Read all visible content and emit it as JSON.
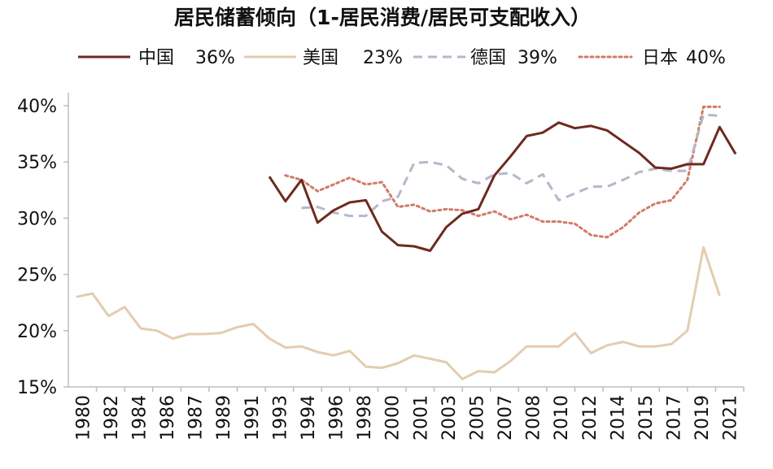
{
  "chart_data": {
    "type": "line",
    "title": "居民储蓄倾向（1-居民消费/居民可支配收入）",
    "xlabel": "",
    "ylabel": "",
    "ylim": [
      15,
      40
    ],
    "yticks": [
      "15%",
      "20%",
      "25%",
      "30%",
      "35%",
      "40%"
    ],
    "xtick_labels": [
      "1980",
      "1982",
      "1984",
      "1986",
      "1987",
      "1989",
      "1991",
      "1993",
      "1994",
      "1996",
      "1998",
      "2000",
      "2001",
      "2003",
      "2005",
      "2007",
      "2008",
      "2010",
      "2012",
      "2014",
      "2015",
      "2017",
      "2019",
      "2021"
    ],
    "grid": false,
    "legend_position": "top",
    "series": [
      {
        "name": "中国",
        "legend_value": "36%",
        "color": "#6e2a1f",
        "style": "solid",
        "points": [
          [
            1992,
            33.7
          ],
          [
            1993,
            31.5
          ],
          [
            1994,
            33.4
          ],
          [
            1995,
            29.6
          ],
          [
            1996,
            30.7
          ],
          [
            1997,
            31.4
          ],
          [
            1998,
            31.6
          ],
          [
            1999,
            28.8
          ],
          [
            2000,
            27.6
          ],
          [
            2001,
            27.5
          ],
          [
            2002,
            27.1
          ],
          [
            2003,
            29.2
          ],
          [
            2004,
            30.4
          ],
          [
            2005,
            30.8
          ],
          [
            2006,
            33.8
          ],
          [
            2007,
            35.5
          ],
          [
            2008,
            37.3
          ],
          [
            2009,
            37.6
          ],
          [
            2010,
            38.5
          ],
          [
            2011,
            38.0
          ],
          [
            2012,
            38.2
          ],
          [
            2013,
            37.8
          ],
          [
            2014,
            36.8
          ],
          [
            2015,
            35.8
          ],
          [
            2016,
            34.5
          ],
          [
            2017,
            34.4
          ],
          [
            2018,
            34.8
          ],
          [
            2019,
            34.8
          ],
          [
            2020,
            38.1
          ],
          [
            2021,
            35.7
          ]
        ]
      },
      {
        "name": "美国",
        "legend_value": "23%",
        "color": "#e2cdb1",
        "style": "solid",
        "points": [
          [
            1980,
            23.0
          ],
          [
            1981,
            23.3
          ],
          [
            1982,
            21.3
          ],
          [
            1983,
            22.1
          ],
          [
            1984,
            20.2
          ],
          [
            1985,
            20.0
          ],
          [
            1986,
            19.3
          ],
          [
            1987,
            19.7
          ],
          [
            1988,
            19.7
          ],
          [
            1989,
            19.8
          ],
          [
            1990,
            20.3
          ],
          [
            1991,
            20.6
          ],
          [
            1992,
            19.3
          ],
          [
            1993,
            18.5
          ],
          [
            1994,
            18.6
          ],
          [
            1995,
            18.1
          ],
          [
            1996,
            17.8
          ],
          [
            1997,
            18.2
          ],
          [
            1998,
            16.8
          ],
          [
            1999,
            16.7
          ],
          [
            2000,
            17.1
          ],
          [
            2001,
            17.8
          ],
          [
            2002,
            17.5
          ],
          [
            2003,
            17.2
          ],
          [
            2004,
            15.7
          ],
          [
            2005,
            16.4
          ],
          [
            2006,
            16.3
          ],
          [
            2007,
            17.3
          ],
          [
            2008,
            18.6
          ],
          [
            2009,
            18.6
          ],
          [
            2010,
            18.6
          ],
          [
            2011,
            19.8
          ],
          [
            2012,
            18.0
          ],
          [
            2013,
            18.7
          ],
          [
            2014,
            19.0
          ],
          [
            2015,
            18.6
          ],
          [
            2016,
            18.6
          ],
          [
            2017,
            18.8
          ],
          [
            2018,
            20.0
          ],
          [
            2019,
            27.4
          ],
          [
            2020,
            23.1
          ]
        ]
      },
      {
        "name": "德国",
        "legend_value": "39%",
        "color": "#b5b8c9",
        "style": "dashed",
        "points": [
          [
            1994,
            30.9
          ],
          [
            1995,
            31.0
          ],
          [
            1996,
            30.5
          ],
          [
            1997,
            30.2
          ],
          [
            1998,
            30.2
          ],
          [
            1999,
            31.5
          ],
          [
            2000,
            31.9
          ],
          [
            2001,
            34.9
          ],
          [
            2002,
            35.0
          ],
          [
            2003,
            34.7
          ],
          [
            2004,
            33.5
          ],
          [
            2005,
            33.1
          ],
          [
            2006,
            33.9
          ],
          [
            2007,
            34.0
          ],
          [
            2008,
            33.1
          ],
          [
            2009,
            33.9
          ],
          [
            2010,
            31.6
          ],
          [
            2011,
            32.2
          ],
          [
            2012,
            32.8
          ],
          [
            2013,
            32.8
          ],
          [
            2014,
            33.4
          ],
          [
            2015,
            34.1
          ],
          [
            2016,
            34.4
          ],
          [
            2017,
            34.2
          ],
          [
            2018,
            34.2
          ],
          [
            2019,
            39.2
          ],
          [
            2020,
            39.1
          ]
        ]
      },
      {
        "name": "日本",
        "legend_value": "40%",
        "color": "#d27a68",
        "style": "dotted",
        "points": [
          [
            1993,
            33.8
          ],
          [
            1994,
            33.4
          ],
          [
            1995,
            32.4
          ],
          [
            1996,
            33.0
          ],
          [
            1997,
            33.6
          ],
          [
            1998,
            33.0
          ],
          [
            1999,
            33.2
          ],
          [
            2000,
            31.0
          ],
          [
            2001,
            31.2
          ],
          [
            2002,
            30.6
          ],
          [
            2003,
            30.8
          ],
          [
            2004,
            30.7
          ],
          [
            2005,
            30.2
          ],
          [
            2006,
            30.6
          ],
          [
            2007,
            29.9
          ],
          [
            2008,
            30.3
          ],
          [
            2009,
            29.7
          ],
          [
            2010,
            29.7
          ],
          [
            2011,
            29.5
          ],
          [
            2012,
            28.5
          ],
          [
            2013,
            28.3
          ],
          [
            2014,
            29.2
          ],
          [
            2015,
            30.5
          ],
          [
            2016,
            31.3
          ],
          [
            2017,
            31.6
          ],
          [
            2018,
            33.4
          ],
          [
            2019,
            39.9
          ],
          [
            2020,
            39.9
          ]
        ]
      }
    ]
  }
}
